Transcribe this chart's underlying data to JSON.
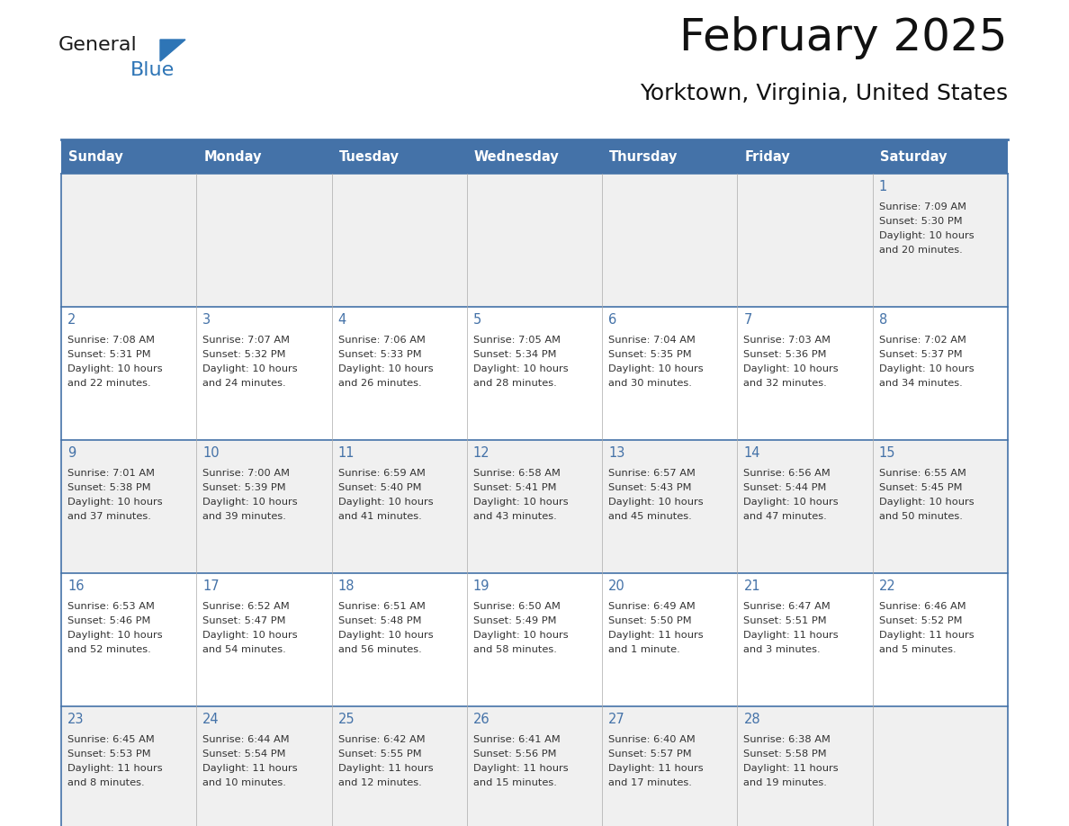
{
  "title": "February 2025",
  "subtitle": "Yorktown, Virginia, United States",
  "days_of_week": [
    "Sunday",
    "Monday",
    "Tuesday",
    "Wednesday",
    "Thursday",
    "Friday",
    "Saturday"
  ],
  "header_bg": "#4472A8",
  "header_text": "#FFFFFF",
  "row_bg_odd": "#F0F0F0",
  "row_bg_even": "#FFFFFF",
  "cell_border": "#4472A8",
  "day_number_color": "#4472A8",
  "info_text_color": "#333333",
  "logo_general_color": "#1a1a1a",
  "logo_blue_color": "#2E75B6",
  "calendar_data": [
    {
      "day": 1,
      "col": 6,
      "row": 0,
      "sunrise": "7:09 AM",
      "sunset": "5:30 PM",
      "daylight_h": "10 hours",
      "daylight_m": "and 20 minutes."
    },
    {
      "day": 2,
      "col": 0,
      "row": 1,
      "sunrise": "7:08 AM",
      "sunset": "5:31 PM",
      "daylight_h": "10 hours",
      "daylight_m": "and 22 minutes."
    },
    {
      "day": 3,
      "col": 1,
      "row": 1,
      "sunrise": "7:07 AM",
      "sunset": "5:32 PM",
      "daylight_h": "10 hours",
      "daylight_m": "and 24 minutes."
    },
    {
      "day": 4,
      "col": 2,
      "row": 1,
      "sunrise": "7:06 AM",
      "sunset": "5:33 PM",
      "daylight_h": "10 hours",
      "daylight_m": "and 26 minutes."
    },
    {
      "day": 5,
      "col": 3,
      "row": 1,
      "sunrise": "7:05 AM",
      "sunset": "5:34 PM",
      "daylight_h": "10 hours",
      "daylight_m": "and 28 minutes."
    },
    {
      "day": 6,
      "col": 4,
      "row": 1,
      "sunrise": "7:04 AM",
      "sunset": "5:35 PM",
      "daylight_h": "10 hours",
      "daylight_m": "and 30 minutes."
    },
    {
      "day": 7,
      "col": 5,
      "row": 1,
      "sunrise": "7:03 AM",
      "sunset": "5:36 PM",
      "daylight_h": "10 hours",
      "daylight_m": "and 32 minutes."
    },
    {
      "day": 8,
      "col": 6,
      "row": 1,
      "sunrise": "7:02 AM",
      "sunset": "5:37 PM",
      "daylight_h": "10 hours",
      "daylight_m": "and 34 minutes."
    },
    {
      "day": 9,
      "col": 0,
      "row": 2,
      "sunrise": "7:01 AM",
      "sunset": "5:38 PM",
      "daylight_h": "10 hours",
      "daylight_m": "and 37 minutes."
    },
    {
      "day": 10,
      "col": 1,
      "row": 2,
      "sunrise": "7:00 AM",
      "sunset": "5:39 PM",
      "daylight_h": "10 hours",
      "daylight_m": "and 39 minutes."
    },
    {
      "day": 11,
      "col": 2,
      "row": 2,
      "sunrise": "6:59 AM",
      "sunset": "5:40 PM",
      "daylight_h": "10 hours",
      "daylight_m": "and 41 minutes."
    },
    {
      "day": 12,
      "col": 3,
      "row": 2,
      "sunrise": "6:58 AM",
      "sunset": "5:41 PM",
      "daylight_h": "10 hours",
      "daylight_m": "and 43 minutes."
    },
    {
      "day": 13,
      "col": 4,
      "row": 2,
      "sunrise": "6:57 AM",
      "sunset": "5:43 PM",
      "daylight_h": "10 hours",
      "daylight_m": "and 45 minutes."
    },
    {
      "day": 14,
      "col": 5,
      "row": 2,
      "sunrise": "6:56 AM",
      "sunset": "5:44 PM",
      "daylight_h": "10 hours",
      "daylight_m": "and 47 minutes."
    },
    {
      "day": 15,
      "col": 6,
      "row": 2,
      "sunrise": "6:55 AM",
      "sunset": "5:45 PM",
      "daylight_h": "10 hours",
      "daylight_m": "and 50 minutes."
    },
    {
      "day": 16,
      "col": 0,
      "row": 3,
      "sunrise": "6:53 AM",
      "sunset": "5:46 PM",
      "daylight_h": "10 hours",
      "daylight_m": "and 52 minutes."
    },
    {
      "day": 17,
      "col": 1,
      "row": 3,
      "sunrise": "6:52 AM",
      "sunset": "5:47 PM",
      "daylight_h": "10 hours",
      "daylight_m": "and 54 minutes."
    },
    {
      "day": 18,
      "col": 2,
      "row": 3,
      "sunrise": "6:51 AM",
      "sunset": "5:48 PM",
      "daylight_h": "10 hours",
      "daylight_m": "and 56 minutes."
    },
    {
      "day": 19,
      "col": 3,
      "row": 3,
      "sunrise": "6:50 AM",
      "sunset": "5:49 PM",
      "daylight_h": "10 hours",
      "daylight_m": "and 58 minutes."
    },
    {
      "day": 20,
      "col": 4,
      "row": 3,
      "sunrise": "6:49 AM",
      "sunset": "5:50 PM",
      "daylight_h": "11 hours",
      "daylight_m": "and 1 minute."
    },
    {
      "day": 21,
      "col": 5,
      "row": 3,
      "sunrise": "6:47 AM",
      "sunset": "5:51 PM",
      "daylight_h": "11 hours",
      "daylight_m": "and 3 minutes."
    },
    {
      "day": 22,
      "col": 6,
      "row": 3,
      "sunrise": "6:46 AM",
      "sunset": "5:52 PM",
      "daylight_h": "11 hours",
      "daylight_m": "and 5 minutes."
    },
    {
      "day": 23,
      "col": 0,
      "row": 4,
      "sunrise": "6:45 AM",
      "sunset": "5:53 PM",
      "daylight_h": "11 hours",
      "daylight_m": "and 8 minutes."
    },
    {
      "day": 24,
      "col": 1,
      "row": 4,
      "sunrise": "6:44 AM",
      "sunset": "5:54 PM",
      "daylight_h": "11 hours",
      "daylight_m": "and 10 minutes."
    },
    {
      "day": 25,
      "col": 2,
      "row": 4,
      "sunrise": "6:42 AM",
      "sunset": "5:55 PM",
      "daylight_h": "11 hours",
      "daylight_m": "and 12 minutes."
    },
    {
      "day": 26,
      "col": 3,
      "row": 4,
      "sunrise": "6:41 AM",
      "sunset": "5:56 PM",
      "daylight_h": "11 hours",
      "daylight_m": "and 15 minutes."
    },
    {
      "day": 27,
      "col": 4,
      "row": 4,
      "sunrise": "6:40 AM",
      "sunset": "5:57 PM",
      "daylight_h": "11 hours",
      "daylight_m": "and 17 minutes."
    },
    {
      "day": 28,
      "col": 5,
      "row": 4,
      "sunrise": "6:38 AM",
      "sunset": "5:58 PM",
      "daylight_h": "11 hours",
      "daylight_m": "and 19 minutes."
    }
  ],
  "fig_width": 11.88,
  "fig_height": 9.18,
  "dpi": 100
}
